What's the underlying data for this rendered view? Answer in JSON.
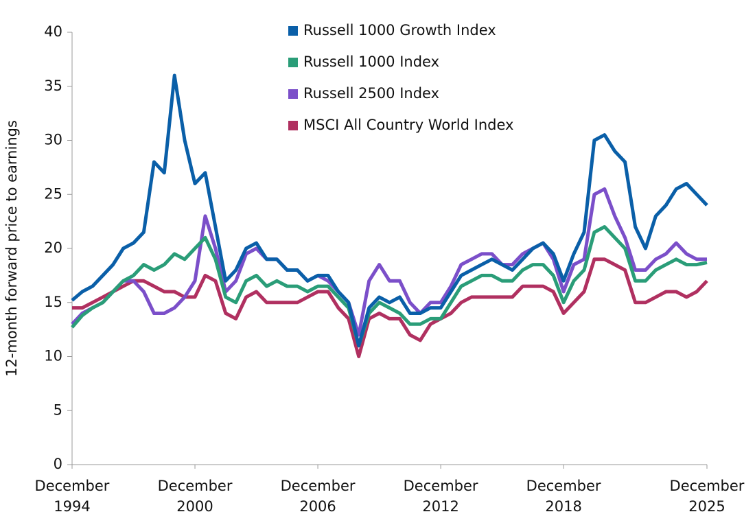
{
  "chart_data": {
    "type": "line",
    "ylabel": "12-month forward price to earnings",
    "x": [
      1994.92,
      1995.42,
      1995.92,
      1996.42,
      1996.92,
      1997.42,
      1997.92,
      1998.42,
      1998.92,
      1999.42,
      1999.92,
      2000.42,
      2000.92,
      2001.42,
      2001.92,
      2002.42,
      2002.92,
      2003.42,
      2003.92,
      2004.42,
      2004.92,
      2005.42,
      2005.92,
      2006.42,
      2006.92,
      2007.42,
      2007.92,
      2008.42,
      2008.92,
      2009.42,
      2009.92,
      2010.42,
      2010.92,
      2011.42,
      2011.92,
      2012.42,
      2012.92,
      2013.42,
      2013.92,
      2014.42,
      2014.92,
      2015.42,
      2015.92,
      2016.42,
      2016.92,
      2017.42,
      2017.92,
      2018.42,
      2018.92,
      2019.42,
      2019.92,
      2020.42,
      2020.92,
      2021.42,
      2021.92,
      2022.42,
      2022.92,
      2023.42,
      2023.92,
      2024.42,
      2024.92,
      2025.42,
      2025.92
    ],
    "xlim": [
      1994.92,
      2025.92
    ],
    "xticks": [
      {
        "value": 1994.92,
        "label": "December 1994"
      },
      {
        "value": 2000.92,
        "label": "December 2000"
      },
      {
        "value": 2006.92,
        "label": "December 2006"
      },
      {
        "value": 2012.92,
        "label": "December 2012"
      },
      {
        "value": 2018.92,
        "label": "December 2018"
      },
      {
        "value": 2025.92,
        "label": "December 2025"
      }
    ],
    "ylim": [
      0,
      40
    ],
    "yticks": [
      0,
      5,
      10,
      15,
      20,
      25,
      30,
      35,
      40
    ],
    "grid": false,
    "legend": "top",
    "series": [
      {
        "name": "Russell 1000 Growth Index",
        "color": "#0a5fa8",
        "values": [
          15.2,
          16,
          16.5,
          17.5,
          18.5,
          20,
          20.5,
          21.5,
          28,
          27,
          36,
          30,
          26,
          27,
          22,
          17,
          18,
          20,
          20.5,
          19,
          19,
          18,
          18,
          17,
          17.5,
          17.5,
          16,
          15,
          11,
          14.5,
          15.5,
          15,
          15.5,
          14,
          14,
          14.5,
          14.5,
          16,
          17.5,
          18,
          18.5,
          19,
          18.5,
          18,
          19,
          20,
          20.5,
          19.5,
          17,
          19.5,
          21.5,
          30,
          30.5,
          29,
          28,
          22,
          20,
          23,
          24,
          25.5,
          26,
          25,
          24
        ]
      },
      {
        "name": "Russell 1000 Index",
        "color": "#2a9d78",
        "values": [
          12.7,
          13.8,
          14.5,
          15,
          16,
          17,
          17.5,
          18.5,
          18,
          18.5,
          19.5,
          19,
          20,
          21,
          19,
          15.5,
          15,
          17,
          17.5,
          16.5,
          17,
          16.5,
          16.5,
          16,
          16.5,
          16.5,
          15.5,
          14.5,
          11,
          14,
          15,
          14.5,
          14,
          13,
          13,
          13.5,
          13.5,
          15,
          16.5,
          17,
          17.5,
          17.5,
          17,
          17,
          18,
          18.5,
          18.5,
          17.5,
          15,
          17,
          18,
          21.5,
          22,
          21,
          20,
          17,
          17,
          18,
          18.5,
          19,
          18.5,
          18.5,
          18.7
        ]
      },
      {
        "name": "Russell 2500 Index",
        "color": "#7b4fc9",
        "values": [
          13,
          14,
          14.5,
          15,
          16,
          17,
          17,
          16,
          14,
          14,
          14.5,
          15.5,
          17,
          23,
          20,
          16,
          17,
          19.5,
          20,
          19,
          19,
          18,
          18,
          17,
          17.5,
          17,
          16,
          15,
          12,
          17,
          18.5,
          17,
          17,
          15,
          14,
          15,
          15,
          16.5,
          18.5,
          19,
          19.5,
          19.5,
          18.5,
          18.5,
          19.5,
          20,
          20.5,
          19,
          16,
          18.5,
          19,
          25,
          25.5,
          23,
          21,
          18,
          18,
          19,
          19.5,
          20.5,
          19.5,
          19,
          19
        ]
      },
      {
        "name": "MSCI All Country World Index",
        "color": "#b03060",
        "values": [
          14.5,
          14.5,
          15,
          15.5,
          16,
          16.5,
          17,
          17,
          16.5,
          16,
          16,
          15.5,
          15.5,
          17.5,
          17,
          14,
          13.5,
          15.5,
          16,
          15,
          15,
          15,
          15,
          15.5,
          16,
          16,
          14.5,
          13.5,
          10,
          13.5,
          14,
          13.5,
          13.5,
          12,
          11.5,
          13,
          13.5,
          14,
          15,
          15.5,
          15.5,
          15.5,
          15.5,
          15.5,
          16.5,
          16.5,
          16.5,
          16,
          14,
          15,
          16,
          19,
          19,
          18.5,
          18,
          15,
          15,
          15.5,
          16,
          16,
          15.5,
          16,
          17
        ]
      }
    ]
  }
}
